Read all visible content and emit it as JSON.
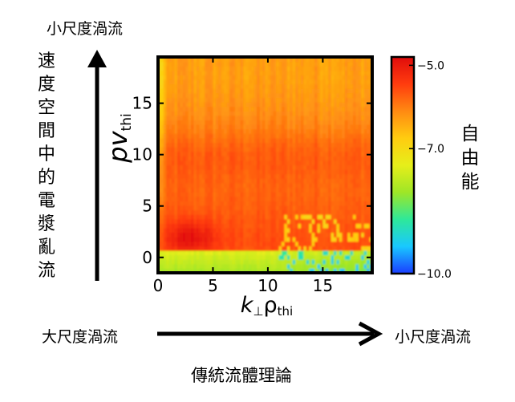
{
  "labels": {
    "top_left": "小尺度渦流",
    "left_vertical": "速度空間中的電漿亂流",
    "bottom_left": "大尺度渦流",
    "bottom_right": "小尺度渦流",
    "bottom_center": "傳統流體理論",
    "colorbar_title": "自由能"
  },
  "chart_data": {
    "type": "heatmap",
    "xlabel_main": "k",
    "xlabel_sub1": "⊥",
    "xlabel_mid": "ρ",
    "xlabel_sub2": "thi",
    "ylabel_main": "pv",
    "ylabel_sub": "thi",
    "x_ticks": [
      "0",
      "5",
      "10",
      "15"
    ],
    "y_ticks": [
      "0",
      "5",
      "10",
      "15"
    ],
    "xlim": [
      0,
      19.5
    ],
    "ylim": [
      -1.5,
      19.5
    ],
    "colorbar": {
      "ticks": [
        "−5.0",
        "−7.0",
        "−10.0"
      ],
      "range": [
        -10.0,
        -4.8
      ]
    },
    "colors": [
      "#1a3cff",
      "#19c8ff",
      "#2ee89a",
      "#9ee627",
      "#e6ee1a",
      "#ffcc10",
      "#ff8a12",
      "#ff3c0e",
      "#e00c0c"
    ],
    "description_values": {
      "peak_region": {
        "x": [
          1,
          5
        ],
        "y": [
          0,
          4
        ],
        "value": -4.9
      },
      "bulk_value_low_y": -5.6,
      "bulk_value_high_y": -6.3,
      "low_x_edge_value": -7.0,
      "bottom_band_value": -8.0
    }
  }
}
